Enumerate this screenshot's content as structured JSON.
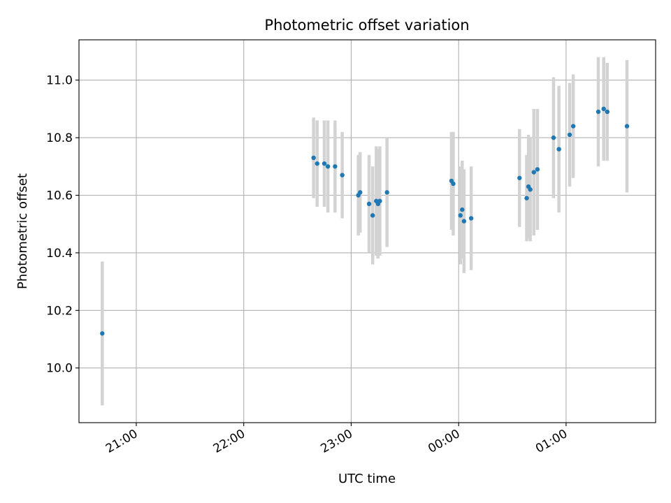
{
  "chart_data": {
    "type": "scatter",
    "title": "Photometric offset variation",
    "xlabel": "UTC time",
    "ylabel": "Photometric offset",
    "x_axis_type": "time",
    "x_range": [
      "20:28",
      "01:50"
    ],
    "ylim": [
      9.81,
      11.14
    ],
    "grid": true,
    "x_ticks": [
      "21:00",
      "22:00",
      "23:00",
      "00:00",
      "01:00"
    ],
    "y_ticks": [
      "10.0",
      "10.2",
      "10.4",
      "10.6",
      "10.8",
      "11.0"
    ],
    "colors": {
      "marker": "#1f77b4",
      "errorbar": "#d3d3d3",
      "grid": "#b0b0b0",
      "axes": "#000000"
    },
    "series": [
      {
        "points": [
          {
            "x": "20:41",
            "y": 10.12,
            "err": 0.25
          },
          {
            "x": "22:39",
            "y": 10.73,
            "err": 0.14
          },
          {
            "x": "22:41",
            "y": 10.71,
            "err": 0.15
          },
          {
            "x": "22:45",
            "y": 10.71,
            "err": 0.15
          },
          {
            "x": "22:47",
            "y": 10.7,
            "err": 0.16
          },
          {
            "x": "22:51",
            "y": 10.7,
            "err": 0.16
          },
          {
            "x": "22:55",
            "y": 10.67,
            "err": 0.15
          },
          {
            "x": "23:04",
            "y": 10.6,
            "err": 0.14
          },
          {
            "x": "23:05",
            "y": 10.61,
            "err": 0.14
          },
          {
            "x": "23:10",
            "y": 10.57,
            "err": 0.17
          },
          {
            "x": "23:12",
            "y": 10.53,
            "err": 0.17
          },
          {
            "x": "23:14",
            "y": 10.58,
            "err": 0.19
          },
          {
            "x": "23:15",
            "y": 10.57,
            "err": 0.19
          },
          {
            "x": "23:16",
            "y": 10.58,
            "err": 0.19
          },
          {
            "x": "23:20",
            "y": 10.61,
            "err": 0.19
          },
          {
            "x": "23:56",
            "y": 10.65,
            "err": 0.17
          },
          {
            "x": "23:57",
            "y": 10.64,
            "err": 0.18
          },
          {
            "x": "00:01",
            "y": 10.53,
            "err": 0.17
          },
          {
            "x": "00:02",
            "y": 10.55,
            "err": 0.17
          },
          {
            "x": "00:03",
            "y": 10.51,
            "err": 0.18
          },
          {
            "x": "00:07",
            "y": 10.52,
            "err": 0.18
          },
          {
            "x": "00:34",
            "y": 10.66,
            "err": 0.17
          },
          {
            "x": "00:38",
            "y": 10.59,
            "err": 0.15
          },
          {
            "x": "00:39",
            "y": 10.63,
            "err": 0.18
          },
          {
            "x": "00:40",
            "y": 10.62,
            "err": 0.18
          },
          {
            "x": "00:42",
            "y": 10.68,
            "err": 0.22
          },
          {
            "x": "00:44",
            "y": 10.69,
            "err": 0.21
          },
          {
            "x": "00:53",
            "y": 10.8,
            "err": 0.21
          },
          {
            "x": "00:56",
            "y": 10.76,
            "err": 0.22
          },
          {
            "x": "01:02",
            "y": 10.81,
            "err": 0.18
          },
          {
            "x": "01:04",
            "y": 10.84,
            "err": 0.18
          },
          {
            "x": "01:18",
            "y": 10.89,
            "err": 0.19
          },
          {
            "x": "01:21",
            "y": 10.9,
            "err": 0.18
          },
          {
            "x": "01:23",
            "y": 10.89,
            "err": 0.17
          },
          {
            "x": "01:34",
            "y": 10.84,
            "err": 0.23
          }
        ]
      }
    ]
  }
}
